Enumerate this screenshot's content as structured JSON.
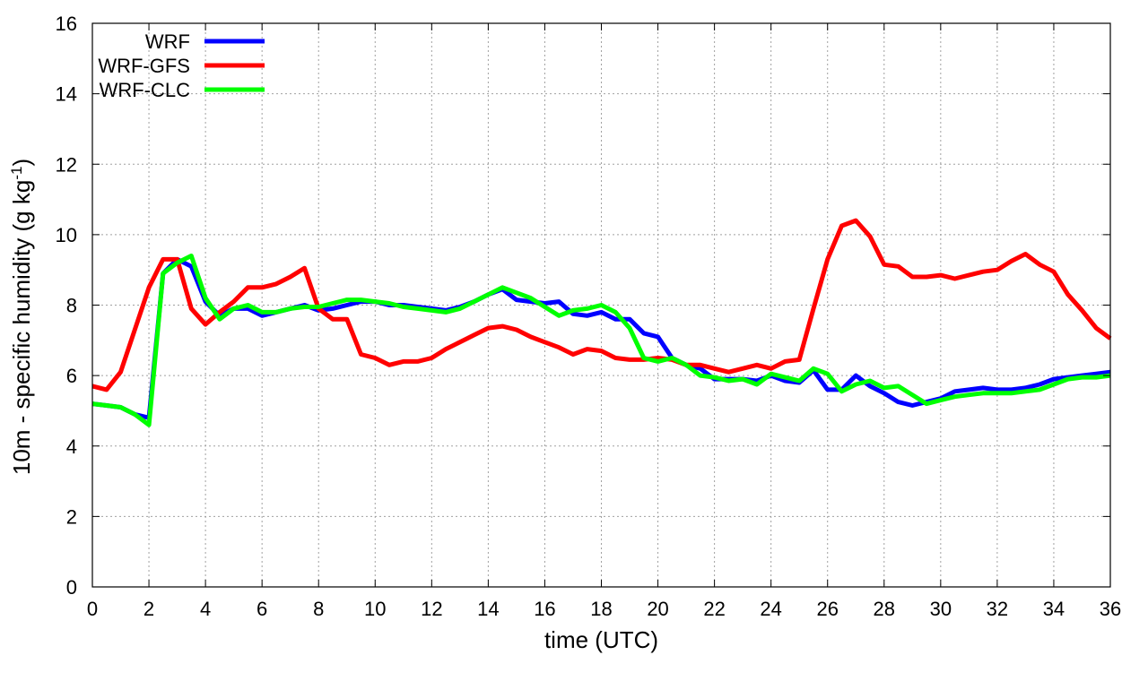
{
  "chart_data": {
    "type": "line",
    "xlabel": "time (UTC)",
    "ylabel_parts": [
      "10m - specific humidity (g kg",
      "-1",
      ")"
    ],
    "xlim": [
      0,
      36
    ],
    "ylim": [
      0,
      16
    ],
    "xticks": [
      0,
      2,
      4,
      6,
      8,
      10,
      12,
      14,
      16,
      18,
      20,
      22,
      24,
      26,
      28,
      30,
      32,
      34,
      36
    ],
    "yticks": [
      0,
      2,
      4,
      6,
      8,
      10,
      12,
      14,
      16
    ],
    "grid": true,
    "legend_position": "top-left",
    "series": [
      {
        "name": "WRF",
        "color": "#0000ff",
        "x": [
          0,
          0.5,
          1,
          1.5,
          2,
          2.5,
          3,
          3.5,
          4,
          4.5,
          5,
          5.5,
          6,
          6.5,
          7,
          7.5,
          8,
          8.5,
          9,
          9.5,
          10,
          10.5,
          11,
          11.5,
          12,
          12.5,
          13,
          13.5,
          14,
          14.5,
          15,
          15.5,
          16,
          16.5,
          17,
          17.5,
          18,
          18.5,
          19,
          19.5,
          20,
          20.5,
          21,
          21.5,
          22,
          22.5,
          23,
          23.5,
          24,
          24.5,
          25,
          25.5,
          26,
          26.5,
          27,
          27.5,
          28,
          28.5,
          29,
          29.5,
          30,
          30.5,
          31,
          31.5,
          32,
          32.5,
          33,
          33.5,
          34,
          34.5,
          35,
          35.5,
          36
        ],
        "values": [
          5.2,
          5.15,
          5.1,
          4.9,
          4.8,
          8.9,
          9.3,
          9.1,
          8.1,
          7.7,
          7.9,
          7.9,
          7.7,
          7.8,
          7.9,
          8.0,
          7.85,
          7.9,
          8.0,
          8.1,
          8.1,
          8.0,
          8.0,
          7.95,
          7.9,
          7.85,
          7.95,
          8.1,
          8.3,
          8.45,
          8.15,
          8.1,
          8.05,
          8.1,
          7.75,
          7.7,
          7.8,
          7.6,
          7.6,
          7.2,
          7.1,
          6.5,
          6.3,
          6.2,
          5.9,
          5.9,
          5.9,
          5.85,
          6.0,
          5.85,
          5.8,
          6.15,
          5.6,
          5.6,
          6.0,
          5.7,
          5.5,
          5.25,
          5.15,
          5.25,
          5.35,
          5.55,
          5.6,
          5.65,
          5.6,
          5.6,
          5.65,
          5.75,
          5.9,
          5.95,
          6.0,
          6.05,
          6.1
        ]
      },
      {
        "name": "WRF-GFS",
        "color": "#ff0000",
        "x": [
          0,
          0.5,
          1,
          1.5,
          2,
          2.5,
          3,
          3.5,
          4,
          4.5,
          5,
          5.5,
          6,
          6.5,
          7,
          7.5,
          8,
          8.5,
          9,
          9.5,
          10,
          10.5,
          11,
          11.5,
          12,
          12.5,
          13,
          13.5,
          14,
          14.5,
          15,
          15.5,
          16,
          16.5,
          17,
          17.5,
          18,
          18.5,
          19,
          19.5,
          20,
          20.5,
          21,
          21.5,
          22,
          22.5,
          23,
          23.5,
          24,
          24.5,
          25,
          25.5,
          26,
          26.5,
          27,
          27.5,
          28,
          28.5,
          29,
          29.5,
          30,
          30.5,
          31,
          31.5,
          32,
          32.5,
          33,
          33.5,
          34,
          34.5,
          35,
          35.5,
          36
        ],
        "values": [
          5.7,
          5.6,
          6.1,
          7.3,
          8.5,
          9.3,
          9.3,
          7.9,
          7.45,
          7.8,
          8.1,
          8.5,
          8.5,
          8.6,
          8.8,
          9.05,
          7.9,
          7.6,
          7.6,
          6.6,
          6.5,
          6.3,
          6.4,
          6.4,
          6.5,
          6.75,
          6.95,
          7.15,
          7.35,
          7.4,
          7.3,
          7.1,
          6.95,
          6.8,
          6.6,
          6.75,
          6.7,
          6.5,
          6.45,
          6.45,
          6.5,
          6.45,
          6.3,
          6.3,
          6.2,
          6.1,
          6.2,
          6.3,
          6.2,
          6.4,
          6.45,
          7.9,
          9.3,
          10.25,
          10.4,
          9.95,
          9.15,
          9.1,
          8.8,
          8.8,
          8.85,
          8.75,
          8.85,
          8.95,
          9.0,
          9.25,
          9.45,
          9.15,
          8.95,
          8.3,
          7.85,
          7.35,
          7.05
        ]
      },
      {
        "name": "WRF-CLC",
        "color": "#00ff00",
        "x": [
          0,
          0.5,
          1,
          1.5,
          2,
          2.5,
          3,
          3.5,
          4,
          4.5,
          5,
          5.5,
          6,
          6.5,
          7,
          7.5,
          8,
          8.5,
          9,
          9.5,
          10,
          10.5,
          11,
          11.5,
          12,
          12.5,
          13,
          13.5,
          14,
          14.5,
          15,
          15.5,
          16,
          16.5,
          17,
          17.5,
          18,
          18.5,
          19,
          19.5,
          20,
          20.5,
          21,
          21.5,
          22,
          22.5,
          23,
          23.5,
          24,
          24.5,
          25,
          25.5,
          26,
          26.5,
          27,
          27.5,
          28,
          28.5,
          29,
          29.5,
          30,
          30.5,
          31,
          31.5,
          32,
          32.5,
          33,
          33.5,
          34,
          34.5,
          35,
          35.5,
          36
        ],
        "values": [
          5.2,
          5.15,
          5.1,
          4.9,
          4.6,
          8.9,
          9.2,
          9.4,
          8.2,
          7.6,
          7.9,
          8.0,
          7.8,
          7.8,
          7.9,
          7.95,
          7.95,
          8.05,
          8.15,
          8.15,
          8.1,
          8.05,
          7.95,
          7.9,
          7.85,
          7.8,
          7.9,
          8.1,
          8.3,
          8.5,
          8.35,
          8.2,
          7.95,
          7.7,
          7.85,
          7.9,
          8.0,
          7.8,
          7.35,
          6.5,
          6.4,
          6.5,
          6.3,
          6.0,
          5.95,
          5.85,
          5.9,
          5.75,
          6.05,
          5.95,
          5.85,
          6.2,
          6.05,
          5.55,
          5.75,
          5.85,
          5.65,
          5.7,
          5.45,
          5.2,
          5.3,
          5.4,
          5.45,
          5.5,
          5.5,
          5.5,
          5.55,
          5.6,
          5.75,
          5.9,
          5.95,
          5.95,
          6.0
        ]
      }
    ]
  }
}
